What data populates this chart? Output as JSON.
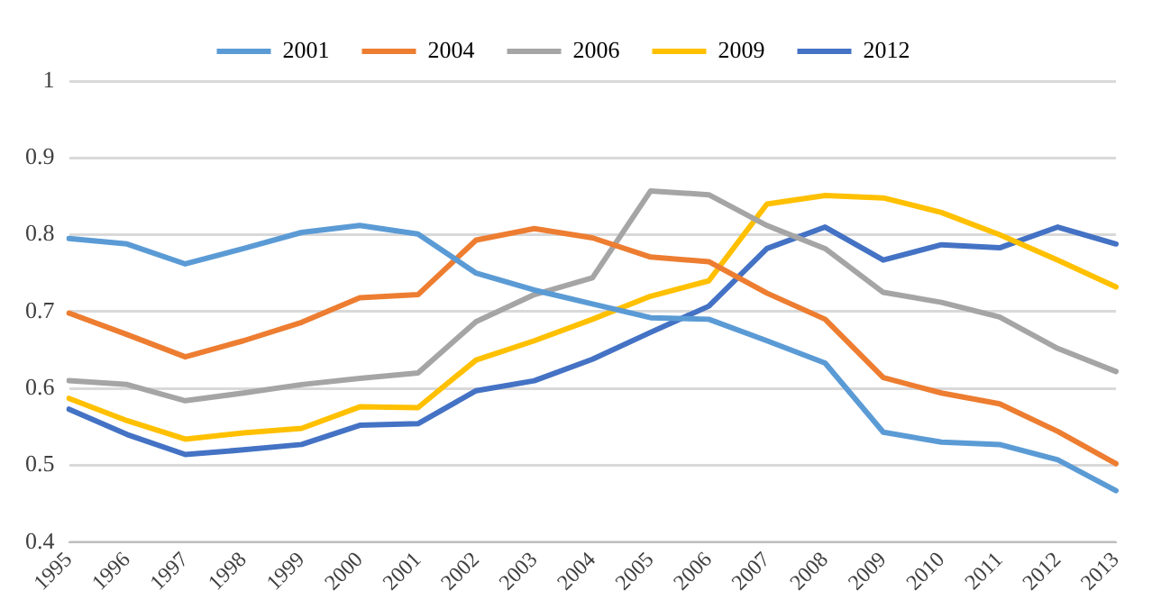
{
  "chart_data": {
    "type": "line",
    "categories": [
      "1995",
      "1996",
      "1997",
      "1998",
      "1999",
      "2000",
      "2001",
      "2002",
      "2003",
      "2004",
      "2005",
      "2006",
      "2007",
      "2008",
      "2009",
      "2010",
      "2011",
      "2012",
      "2013"
    ],
    "series": [
      {
        "name": "2001",
        "color": "#5b9bd5",
        "values": [
          0.795,
          0.788,
          0.762,
          0.782,
          0.803,
          0.812,
          0.801,
          0.75,
          0.728,
          0.71,
          0.692,
          0.69,
          0.662,
          0.633,
          0.543,
          0.53,
          0.527,
          0.507,
          0.467
        ]
      },
      {
        "name": "2004",
        "color": "#ed7d31",
        "values": [
          0.698,
          0.67,
          0.641,
          0.662,
          0.686,
          0.718,
          0.722,
          0.793,
          0.808,
          0.796,
          0.771,
          0.765,
          0.724,
          0.69,
          0.614,
          0.594,
          0.58,
          0.544,
          0.502
        ]
      },
      {
        "name": "2006",
        "color": "#a5a5a5",
        "values": [
          0.61,
          0.605,
          0.584,
          0.594,
          0.605,
          0.613,
          0.62,
          0.687,
          0.722,
          0.744,
          0.857,
          0.852,
          0.812,
          0.782,
          0.725,
          0.712,
          0.693,
          0.652,
          0.622
        ]
      },
      {
        "name": "2009",
        "color": "#ffc000",
        "values": [
          0.587,
          0.558,
          0.534,
          0.542,
          0.548,
          0.576,
          0.575,
          0.637,
          0.662,
          0.69,
          0.72,
          0.74,
          0.84,
          0.851,
          0.848,
          0.829,
          0.8,
          0.767,
          0.732
        ]
      },
      {
        "name": "2012",
        "color": "#4472c4",
        "values": [
          0.573,
          0.54,
          0.514,
          0.52,
          0.527,
          0.552,
          0.554,
          0.597,
          0.61,
          0.638,
          0.673,
          0.707,
          0.782,
          0.81,
          0.767,
          0.787,
          0.783,
          0.81,
          0.788
        ]
      }
    ],
    "ylim": [
      0.4,
      1
    ],
    "yticks": [
      0.4,
      0.5,
      0.6,
      0.7,
      0.8,
      0.9,
      1
    ],
    "grid": "y",
    "legend": "top",
    "marker": "none",
    "line_style": "solid"
  }
}
